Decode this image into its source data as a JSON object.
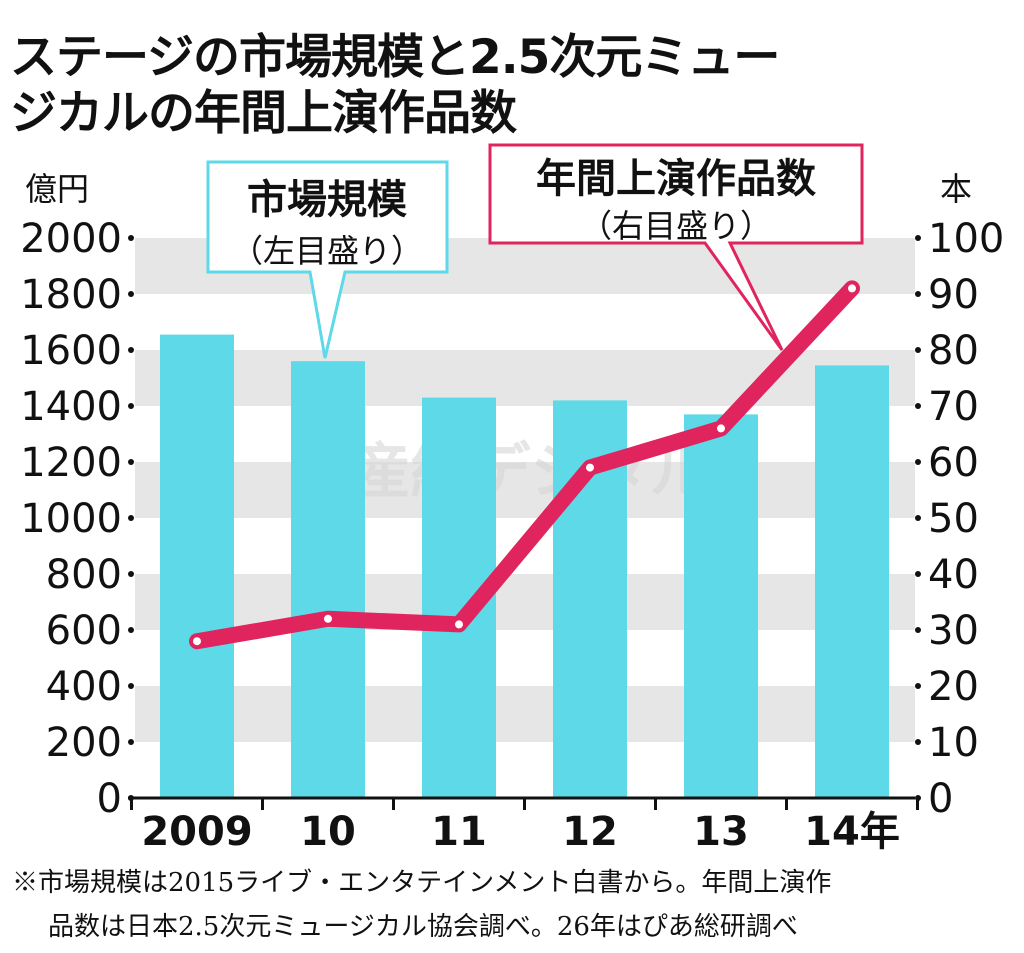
{
  "title_lines": [
    "ステージの市場規模と2.5次元ミュー",
    "ジカルの年間上演作品数"
  ],
  "footnote_lines": [
    "※市場規模は2015ライブ・エンタテインメント白書から。年間上演作",
    "品数は日本2.5次元ミュージカル協会調べ。26年はぴあ総研調べ"
  ],
  "watermark": "産經デジタル",
  "colors": {
    "bar": "#5dd9e8",
    "line": "#e0245e",
    "band": "#e6e6e6"
  },
  "chart_data": {
    "type": "bar+line",
    "categories": [
      "2009",
      "10",
      "11",
      "12",
      "13",
      "14年"
    ],
    "left_axis": {
      "unit": "億円",
      "range": [
        0,
        2000
      ],
      "ticks": [
        0,
        200,
        400,
        600,
        800,
        1000,
        1200,
        1400,
        1600,
        1800,
        2000
      ]
    },
    "right_axis": {
      "unit": "本",
      "range": [
        0,
        100
      ],
      "ticks": [
        0,
        10,
        20,
        30,
        40,
        50,
        60,
        70,
        80,
        90,
        100
      ]
    },
    "series": [
      {
        "name": "市場規模",
        "axis_note": "（左目盛り）",
        "type": "bar",
        "axis": "left",
        "values": [
          1655,
          1560,
          1430,
          1420,
          1370,
          1545
        ]
      },
      {
        "name": "年間上演作品数",
        "axis_note": "（右目盛り）",
        "type": "line",
        "axis": "right",
        "values": [
          28,
          32,
          31,
          59,
          66,
          91
        ]
      }
    ],
    "grid": "alternating horizontal bands"
  }
}
